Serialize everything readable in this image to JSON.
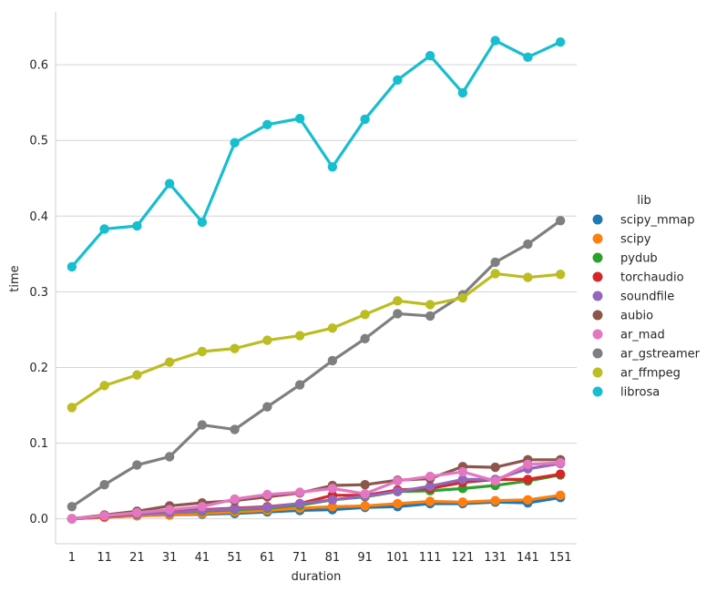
{
  "chart_data": {
    "type": "line",
    "xlabel": "duration",
    "ylabel": "time",
    "ylim": [
      -0.033,
      0.67
    ],
    "y_ticks": [
      "0.0",
      "0.1",
      "0.2",
      "0.3",
      "0.4",
      "0.5",
      "0.6"
    ],
    "grid": "horizontal",
    "legend_title": "lib",
    "legend_placement": "right",
    "categories": [
      "1",
      "11",
      "21",
      "31",
      "41",
      "51",
      "61",
      "71",
      "81",
      "91",
      "101",
      "111",
      "121",
      "131",
      "141",
      "151"
    ],
    "series": [
      {
        "name": "scipy_mmap",
        "color": "#1f77b4",
        "values": [
          0.0,
          0.002,
          0.004,
          0.005,
          0.006,
          0.007,
          0.009,
          0.011,
          0.012,
          0.015,
          0.016,
          0.02,
          0.02,
          0.022,
          0.021,
          0.028
        ]
      },
      {
        "name": "scipy",
        "color": "#ff7f0e",
        "values": [
          0.0,
          0.002,
          0.004,
          0.005,
          0.007,
          0.009,
          0.011,
          0.014,
          0.016,
          0.017,
          0.02,
          0.023,
          0.022,
          0.024,
          0.025,
          0.031
        ]
      },
      {
        "name": "pydub",
        "color": "#2ca02c",
        "values": [
          0.0,
          0.003,
          0.006,
          0.008,
          0.01,
          0.012,
          0.014,
          0.018,
          0.025,
          0.029,
          0.036,
          0.037,
          0.04,
          0.044,
          0.05,
          0.058
        ]
      },
      {
        "name": "torchaudio",
        "color": "#d62728",
        "values": [
          0.0,
          0.003,
          0.006,
          0.009,
          0.012,
          0.014,
          0.016,
          0.02,
          0.031,
          0.031,
          0.038,
          0.04,
          0.048,
          0.052,
          0.052,
          0.059
        ]
      },
      {
        "name": "soundfile",
        "color": "#9467bd",
        "values": [
          0.0,
          0.004,
          0.006,
          0.008,
          0.011,
          0.013,
          0.015,
          0.02,
          0.025,
          0.03,
          0.036,
          0.043,
          0.052,
          0.052,
          0.066,
          0.073
        ]
      },
      {
        "name": "aubio",
        "color": "#8c564b",
        "values": [
          0.0,
          0.005,
          0.01,
          0.017,
          0.021,
          0.024,
          0.029,
          0.034,
          0.044,
          0.045,
          0.051,
          0.053,
          0.069,
          0.068,
          0.078,
          0.078
        ]
      },
      {
        "name": "ar_mad",
        "color": "#e377c2",
        "values": [
          0.0,
          0.004,
          0.008,
          0.012,
          0.016,
          0.026,
          0.032,
          0.035,
          0.04,
          0.033,
          0.05,
          0.056,
          0.062,
          0.05,
          0.072,
          0.074
        ]
      },
      {
        "name": "ar_gstreamer",
        "color": "#7f7f7f",
        "values": [
          0.016,
          0.045,
          0.071,
          0.082,
          0.124,
          0.118,
          0.148,
          0.177,
          0.209,
          0.238,
          0.271,
          0.268,
          0.296,
          0.339,
          0.363,
          0.394
        ]
      },
      {
        "name": "ar_ffmpeg",
        "color": "#bcbd22",
        "values": [
          0.147,
          0.176,
          0.19,
          0.207,
          0.221,
          0.225,
          0.236,
          0.242,
          0.252,
          0.27,
          0.288,
          0.283,
          0.292,
          0.324,
          0.319,
          0.323
        ]
      },
      {
        "name": "librosa",
        "color": "#17becf",
        "values": [
          0.333,
          0.383,
          0.387,
          0.443,
          0.392,
          0.497,
          0.521,
          0.529,
          0.465,
          0.528,
          0.58,
          0.612,
          0.563,
          0.632,
          0.61,
          0.63
        ]
      }
    ]
  }
}
